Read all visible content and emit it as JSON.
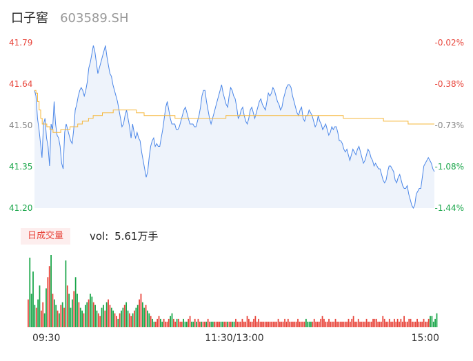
{
  "header": {
    "name": "口子窖",
    "code": "603589.SH"
  },
  "volume_panel": {
    "tag": "日成交量",
    "label": "vol:",
    "value": "5.61万手"
  },
  "colors": {
    "up": "#e8443a",
    "down": "#1aa64a",
    "price_line": "#4a86e8",
    "avg_line": "#f5b73b",
    "area_fill": "#eef3fb"
  },
  "chart_data": [
    {
      "type": "line",
      "title": "",
      "y_left_ticks": [
        "41.79",
        "41.64",
        "41.50",
        "41.35",
        "41.20"
      ],
      "y_right_ticks": [
        "-0.02%",
        "-0.38%",
        "-0.73%",
        "-1.08%",
        "-1.44%"
      ],
      "x_ticks": [
        "09:30",
        "11:30/13:00",
        "15:00"
      ],
      "ylim": [
        41.2,
        41.79
      ],
      "series": [
        {
          "values": [
            41.62,
            41.6,
            41.52,
            41.48,
            41.43,
            41.38,
            41.5,
            41.52,
            41.45,
            41.42,
            41.35,
            41.5,
            41.48,
            41.58,
            41.5,
            41.46,
            41.45,
            41.42,
            41.36,
            41.34,
            41.47,
            41.5,
            41.48,
            41.46,
            41.44,
            41.43,
            41.48,
            41.55,
            41.57,
            41.6,
            41.62,
            41.63,
            41.62,
            41.6,
            41.62,
            41.65,
            41.7,
            41.72,
            41.75,
            41.78,
            41.76,
            41.72,
            41.68,
            41.7,
            41.72,
            41.74,
            41.76,
            41.78,
            41.74,
            41.71,
            41.68,
            41.67,
            41.64,
            41.62,
            41.6,
            41.58,
            41.55,
            41.52,
            41.49,
            41.5,
            41.53,
            41.55,
            41.52,
            41.49,
            41.45,
            41.5,
            41.47,
            41.45,
            41.47,
            41.45,
            41.44,
            41.4,
            41.37,
            41.34,
            41.31,
            41.33,
            41.38,
            41.42,
            41.44,
            41.45,
            41.42,
            41.43,
            41.42,
            41.42,
            41.45,
            41.48,
            41.52,
            41.56,
            41.58,
            41.55,
            41.52,
            41.5,
            41.5,
            41.5,
            41.48,
            41.48,
            41.49,
            41.51,
            41.53,
            41.55,
            41.56,
            41.54,
            41.52,
            41.5,
            41.5,
            41.5,
            41.49,
            41.49,
            41.51,
            41.53,
            41.56,
            41.6,
            41.62,
            41.62,
            41.58,
            41.55,
            41.52,
            41.5,
            41.52,
            41.54,
            41.56,
            41.58,
            41.6,
            41.62,
            41.64,
            41.61,
            41.59,
            41.57,
            41.56,
            41.6,
            41.63,
            41.62,
            41.6,
            41.59,
            41.56,
            41.52,
            41.53,
            41.55,
            41.56,
            41.53,
            41.51,
            41.5,
            41.52,
            41.55,
            41.56,
            41.54,
            41.52,
            41.54,
            41.56,
            41.58,
            41.59,
            41.57,
            41.56,
            41.55,
            41.58,
            41.61,
            41.6,
            41.61,
            41.63,
            41.62,
            41.6,
            41.58,
            41.57,
            41.55,
            41.56,
            41.59,
            41.61,
            41.63,
            41.64,
            41.64,
            41.63,
            41.6,
            41.58,
            41.56,
            41.54,
            41.53,
            41.55,
            41.56,
            41.52,
            41.51,
            41.53,
            41.53,
            41.55,
            41.54,
            41.53,
            41.51,
            41.49,
            41.5,
            41.53,
            41.51,
            41.5,
            41.48,
            41.49,
            41.5,
            41.48,
            41.46,
            41.47,
            41.49,
            41.48,
            41.49,
            41.49,
            41.47,
            41.44,
            41.44,
            41.43,
            41.41,
            41.4,
            41.41,
            41.39,
            41.37,
            41.39,
            41.41,
            41.4,
            41.39,
            41.41,
            41.42,
            41.4,
            41.38,
            41.36,
            41.37,
            41.39,
            41.41,
            41.4,
            41.38,
            41.37,
            41.35,
            41.36,
            41.35,
            41.34,
            41.34,
            41.32,
            41.3,
            41.29,
            41.3,
            41.33,
            41.35,
            41.35,
            41.34,
            41.33,
            41.3,
            41.29,
            41.31,
            41.32,
            41.3,
            41.28,
            41.27,
            41.27,
            41.28,
            41.25,
            41.23,
            41.21,
            41.2,
            41.21,
            41.25,
            41.26,
            41.27,
            41.27,
            41.31,
            41.35,
            41.36,
            41.37,
            41.38,
            41.37,
            41.36,
            41.34,
            41.33
          ]
        },
        {
          "values": [
            41.62,
            41.61,
            41.58,
            41.55,
            41.52,
            41.5,
            41.5,
            41.5,
            41.49,
            41.49,
            41.48,
            41.48,
            41.47,
            41.47,
            41.47,
            41.47,
            41.47,
            41.48,
            41.48,
            41.48,
            41.48,
            41.48,
            41.48,
            41.49,
            41.49,
            41.49,
            41.49,
            41.49,
            41.5,
            41.5,
            41.5,
            41.51,
            41.51,
            41.51,
            41.51,
            41.52,
            41.52,
            41.52,
            41.53,
            41.53,
            41.53,
            41.53,
            41.53,
            41.53,
            41.54,
            41.54,
            41.54,
            41.54,
            41.54,
            41.54,
            41.54,
            41.55,
            41.55,
            41.55,
            41.55,
            41.55,
            41.55,
            41.55,
            41.55,
            41.55,
            41.55,
            41.55,
            41.55,
            41.55,
            41.55,
            41.55,
            41.54,
            41.54,
            41.54,
            41.54,
            41.54,
            41.53,
            41.53,
            41.53,
            41.53,
            41.53,
            41.53,
            41.53,
            41.53,
            41.53,
            41.53,
            41.53,
            41.53,
            41.53,
            41.53,
            41.53,
            41.53,
            41.53,
            41.53,
            41.53,
            41.53,
            41.52,
            41.52,
            41.52,
            41.52,
            41.52,
            41.52,
            41.52,
            41.52,
            41.52,
            41.52,
            41.52,
            41.52,
            41.52,
            41.52,
            41.52,
            41.52,
            41.52,
            41.52,
            41.52,
            41.52,
            41.52,
            41.52,
            41.52,
            41.52,
            41.52,
            41.52,
            41.52,
            41.52,
            41.52,
            41.52,
            41.52,
            41.52,
            41.52,
            41.53,
            41.53,
            41.53,
            41.53,
            41.53,
            41.53,
            41.53,
            41.53,
            41.53,
            41.53,
            41.53,
            41.53,
            41.53,
            41.53,
            41.53,
            41.53,
            41.53,
            41.53,
            41.53,
            41.53,
            41.53,
            41.53,
            41.53,
            41.53,
            41.53,
            41.53,
            41.53,
            41.53,
            41.53,
            41.53,
            41.53,
            41.53,
            41.53,
            41.53,
            41.53,
            41.53,
            41.53,
            41.53,
            41.53,
            41.53,
            41.53,
            41.53,
            41.53,
            41.53,
            41.53,
            41.53,
            41.53,
            41.53,
            41.53,
            41.53,
            41.53,
            41.53,
            41.53,
            41.53,
            41.53,
            41.53,
            41.53,
            41.53,
            41.53,
            41.53,
            41.53,
            41.53,
            41.53,
            41.53,
            41.53,
            41.53,
            41.53,
            41.53,
            41.53,
            41.53,
            41.53,
            41.53,
            41.53,
            41.53,
            41.53,
            41.53,
            41.52,
            41.52,
            41.52,
            41.52,
            41.52,
            41.52,
            41.52,
            41.52,
            41.52,
            41.52,
            41.52,
            41.52,
            41.52,
            41.52,
            41.52,
            41.52,
            41.52,
            41.52,
            41.52,
            41.52,
            41.52,
            41.52,
            41.52,
            41.52,
            41.52,
            41.52,
            41.51,
            41.51,
            41.51,
            41.51,
            41.51,
            41.51,
            41.51,
            41.51,
            41.51,
            41.51,
            41.51,
            41.51,
            41.51,
            41.51,
            41.51,
            41.51,
            41.5,
            41.5,
            41.5,
            41.5,
            41.5,
            41.5,
            41.5,
            41.5,
            41.5,
            41.5,
            41.5,
            41.5,
            41.5,
            41.5,
            41.5,
            41.5,
            41.5,
            41.5
          ]
        }
      ]
    },
    {
      "type": "bar",
      "title": "",
      "values": [
        10,
        25,
        12,
        20,
        8,
        7,
        10,
        15,
        6,
        9,
        5,
        14,
        18,
        22,
        26,
        12,
        10,
        8,
        6,
        5,
        8,
        9,
        7,
        24,
        15,
        12,
        7,
        10,
        13,
        18,
        12,
        9,
        7,
        6,
        5,
        8,
        9,
        10,
        12,
        11,
        9,
        8,
        6,
        5,
        4,
        7,
        8,
        6,
        9,
        10,
        8,
        7,
        6,
        5,
        4,
        3,
        5,
        6,
        7,
        8,
        9,
        6,
        5,
        4,
        5,
        6,
        7,
        8,
        10,
        12,
        9,
        7,
        8,
        6,
        5,
        4,
        3,
        2,
        2,
        3,
        4,
        3,
        2,
        3,
        2,
        2,
        3,
        4,
        5,
        3,
        2,
        3,
        3,
        2,
        2,
        3,
        2,
        2,
        3,
        4,
        2,
        2,
        3,
        2,
        3,
        2,
        2,
        2,
        2,
        2,
        3,
        2,
        2,
        2,
        2,
        2,
        2,
        2,
        2,
        2,
        2,
        2,
        2,
        2,
        2,
        2,
        2,
        3,
        2,
        2,
        2,
        3,
        2,
        2,
        4,
        3,
        2,
        2,
        3,
        4,
        2,
        3,
        2,
        2,
        2,
        2,
        2,
        2,
        2,
        2,
        2,
        2,
        2,
        3,
        2,
        2,
        2,
        3,
        2,
        3,
        2,
        2,
        2,
        2,
        2,
        3,
        2,
        2,
        2,
        2,
        3,
        2,
        2,
        2,
        2,
        3,
        2,
        2,
        2,
        3,
        4,
        3,
        2,
        2,
        3,
        2,
        2,
        2,
        3,
        2,
        2,
        2,
        2,
        2,
        2,
        2,
        3,
        2,
        3,
        4,
        2,
        2,
        3,
        2,
        2,
        2,
        2,
        3,
        2,
        2,
        2,
        3,
        3,
        3,
        2,
        2,
        2,
        4,
        3,
        2,
        2,
        3,
        2,
        2,
        3,
        2,
        3,
        2,
        3,
        2,
        4,
        2,
        2,
        3,
        3,
        2,
        2,
        2,
        3,
        2,
        2,
        2,
        3,
        2,
        2,
        3,
        4,
        4,
        2,
        3,
        5
      ],
      "directions": [
        0,
        1,
        1,
        1,
        1,
        0,
        1,
        1,
        0,
        0,
        1,
        1,
        0,
        0,
        1,
        0,
        1,
        1,
        0,
        1,
        0,
        1,
        0,
        1,
        0,
        1,
        1,
        1,
        0,
        1,
        1,
        0,
        1,
        1,
        0,
        1,
        1,
        0,
        1,
        1,
        0,
        1,
        1,
        0,
        0,
        1,
        1,
        0,
        1,
        0,
        0,
        1,
        1,
        0,
        0,
        1,
        0,
        1,
        1,
        0,
        1,
        1,
        0,
        0,
        1,
        0,
        1,
        1,
        0,
        0,
        1,
        1,
        0,
        1,
        1,
        0,
        1,
        1,
        0,
        0,
        0,
        1,
        1,
        0,
        0,
        0,
        0,
        1,
        1,
        0,
        0,
        1,
        0,
        0,
        0,
        1,
        1,
        1,
        0,
        0,
        1,
        1,
        0,
        1,
        0,
        0,
        1,
        0,
        0,
        1,
        0,
        0,
        1,
        1,
        0,
        0,
        0,
        0,
        1,
        1,
        0,
        0,
        1,
        0,
        0,
        1,
        1,
        0,
        0,
        0,
        0,
        0,
        0,
        0,
        0,
        0,
        0,
        0,
        0,
        0,
        0,
        0,
        0,
        0,
        0,
        0,
        0,
        0,
        0,
        0,
        0,
        0,
        0,
        0,
        0,
        0,
        0,
        0,
        0,
        0,
        0,
        0,
        0,
        0,
        0,
        0,
        0,
        0,
        0,
        0,
        1,
        1,
        1,
        1,
        0,
        0,
        0,
        0,
        0,
        0,
        0,
        0,
        0,
        0,
        0,
        0,
        0,
        0,
        0,
        0,
        0,
        0,
        0,
        0,
        0,
        0,
        0,
        0,
        0,
        0,
        0,
        0,
        0,
        0,
        0,
        0,
        0,
        0,
        0,
        0,
        0,
        0,
        0,
        0,
        0,
        0,
        0,
        0,
        0,
        0,
        0,
        0,
        0,
        0,
        0,
        0,
        0,
        0,
        0,
        0,
        0,
        0,
        0,
        0,
        0,
        0,
        0,
        0,
        0,
        0,
        0,
        0,
        0,
        0,
        0,
        0,
        1,
        1,
        1,
        1,
        1
      ]
    }
  ]
}
